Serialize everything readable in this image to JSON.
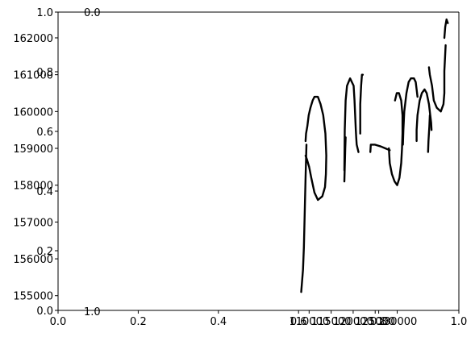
{
  "chart_data": {
    "type": "line",
    "title": "",
    "xlabel": "",
    "ylabel": "",
    "grid": false,
    "legend": "none",
    "stroke_color": "#000000",
    "axes_overlay": {
      "x_ticks": [
        "0.0",
        "0.2",
        "0.4",
        "0.6",
        "0.8",
        "1.0"
      ],
      "y_ticks": [
        "0.0",
        "0.2",
        "0.4",
        "0.6",
        "0.8",
        "1.0"
      ],
      "xlim": [
        0,
        1
      ],
      "ylim": [
        0,
        1
      ]
    },
    "axes_data": {
      "xlim": [
        53000,
        144000
      ],
      "ylim": [
        154600,
        162700
      ],
      "x_ticks": [
        {
          "value": 110000,
          "label": "110000"
        },
        {
          "value": 115000,
          "label": "115000"
        },
        {
          "value": 120000,
          "label": "120000"
        },
        {
          "value": 125000,
          "label": "125000"
        },
        {
          "value": 130000,
          "label": "130000"
        }
      ],
      "y_ticks": [
        {
          "value": 155000,
          "label": "155000"
        },
        {
          "value": 156000,
          "label": "156000"
        },
        {
          "value": 157000,
          "label": "157000"
        },
        {
          "value": 158000,
          "label": "158000"
        },
        {
          "value": 159000,
          "label": "159000"
        },
        {
          "value": 160000,
          "label": "160000"
        },
        {
          "value": 161000,
          "label": "161000"
        },
        {
          "value": 162000,
          "label": "162000"
        }
      ]
    },
    "inner_axis_stubs": {
      "top_label": "0.0",
      "bottom_label": "1.0"
    },
    "series": [
      {
        "x": [
          108200,
          108400,
          108600,
          108800,
          109000,
          109200,
          109400
        ],
        "y": [
          155100,
          155400,
          155700,
          156300,
          157200,
          158200,
          159100
        ]
      },
      {
        "x": [
          109200,
          109500,
          110000,
          110500,
          111200,
          112000,
          113000,
          113600,
          113800,
          113900,
          113700,
          113200,
          112600,
          112000,
          111200,
          110800,
          110300,
          109900,
          109600,
          109300,
          109200
        ],
        "y": [
          158800,
          158700,
          158500,
          158200,
          157800,
          157600,
          157700,
          157950,
          158300,
          158800,
          159400,
          159900,
          160200,
          160400,
          160400,
          160300,
          160100,
          159900,
          159600,
          159400,
          159200
        ]
      },
      {
        "x": [
          118000,
          118100,
          118300,
          118600,
          119300,
          120100,
          120300,
          120600,
          120700,
          120800,
          121200
        ],
        "y": [
          158400,
          159500,
          160300,
          160700,
          160900,
          160700,
          160300,
          159500,
          159300,
          159100,
          158900
        ]
      },
      {
        "x": [
          118000,
          118100,
          118200,
          118300
        ],
        "y": [
          158100,
          158500,
          159000,
          159300
        ]
      },
      {
        "x": [
          121600,
          121600,
          121800,
          122000,
          122200
        ],
        "y": [
          159400,
          160200,
          160700,
          161000,
          161000
        ]
      },
      {
        "x": [
          123900,
          124000,
          124900,
          126300,
          127300,
          128300
        ],
        "y": [
          158900,
          159100,
          159100,
          159050,
          159000,
          158950
        ]
      },
      {
        "x": [
          128100,
          128300,
          128800,
          129400,
          130000,
          130500,
          130900,
          131100,
          131200,
          131200,
          130900,
          130400,
          129900,
          129500
        ],
        "y": [
          159000,
          158600,
          158300,
          158100,
          158000,
          158200,
          158600,
          159000,
          159400,
          159900,
          160300,
          160500,
          160500,
          160300
        ]
      },
      {
        "x": [
          131300,
          131400,
          131600,
          132100,
          132600,
          133100,
          133800,
          134200,
          134400,
          134600
        ],
        "y": [
          159100,
          159500,
          160000,
          160500,
          160800,
          160900,
          160900,
          160800,
          160600,
          160400
        ]
      },
      {
        "x": [
          134400,
          134400,
          134600,
          135100,
          135600,
          136200,
          136700,
          137200,
          137500,
          137700,
          137800
        ],
        "y": [
          159200,
          159500,
          159900,
          160300,
          160500,
          160600,
          160500,
          160200,
          159900,
          159700,
          159500
        ]
      },
      {
        "x": [
          137000,
          137100,
          137300,
          137400
        ],
        "y": [
          158900,
          159200,
          159600,
          159900
        ]
      },
      {
        "x": [
          137200,
          137400,
          137900,
          138300,
          139000,
          139900,
          140500,
          140700,
          140700,
          141000
        ],
        "y": [
          161200,
          161000,
          160700,
          160300,
          160100,
          160000,
          160200,
          160500,
          161100,
          161800
        ]
      },
      {
        "x": [
          140700,
          140900,
          141200,
          141500
        ],
        "y": [
          162000,
          162300,
          162500,
          162400
        ]
      }
    ]
  }
}
